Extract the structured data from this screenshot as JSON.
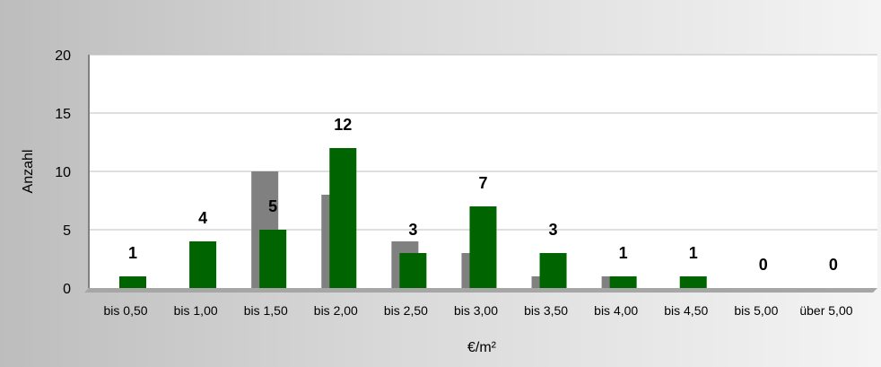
{
  "chart_data": {
    "type": "bar",
    "xlabel": "€/m²",
    "ylabel": "Anzahl",
    "ylim": [
      0,
      20
    ],
    "yticks": [
      0,
      5,
      10,
      15,
      20
    ],
    "grid": true,
    "categories": [
      "bis 0,50",
      "bis 1,00",
      "bis 1,50",
      "bis 2,00",
      "bis 2,50",
      "bis 3,00",
      "bis 3,50",
      "bis 4,00",
      "bis 4,50",
      "bis 5,00",
      "über 5,00"
    ],
    "series": [
      {
        "color": "#808080",
        "values": [
          0,
          0,
          10,
          8,
          4,
          3,
          1,
          1,
          0,
          0,
          0
        ],
        "data_labels": false
      },
      {
        "color": "#006400",
        "values": [
          1,
          4,
          5,
          12,
          3,
          7,
          3,
          1,
          1,
          0,
          0
        ],
        "data_labels": true
      }
    ]
  }
}
